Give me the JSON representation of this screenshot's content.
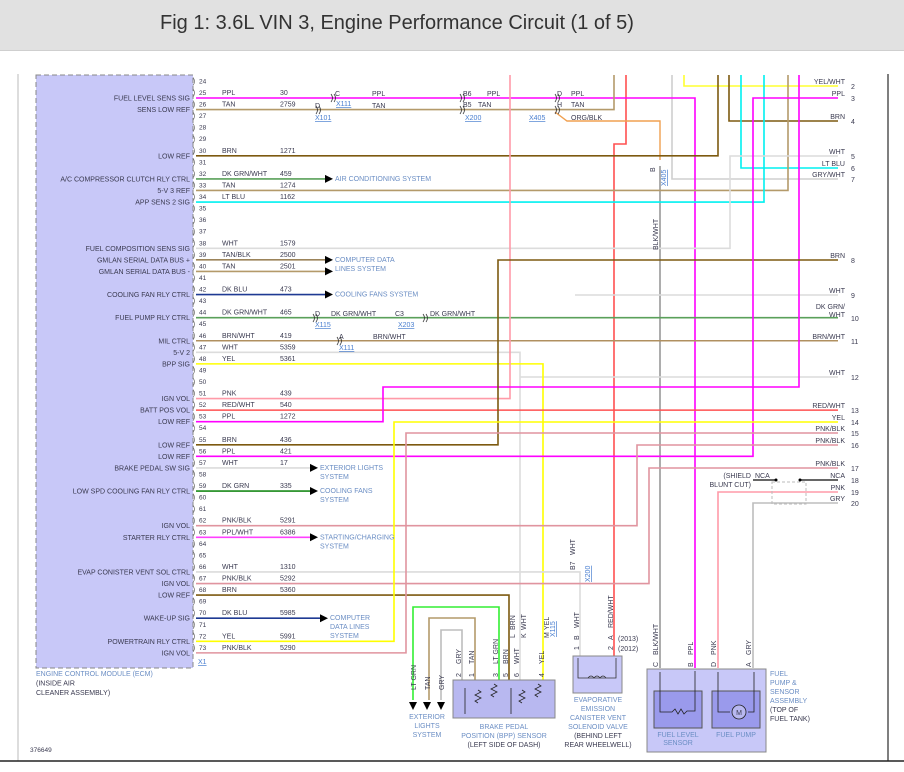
{
  "title": "Fig 1: 3.6L VIN 3, Engine Performance Circuit (1 of 5)",
  "figure_id": "376649",
  "wire_colors": {
    "PPL": "#ff00ff",
    "TAN": "#b49a6a",
    "BRN": "#7d5a10",
    "DK GRN/WHT": "#5aa05a",
    "LT BLU": "#00f0f0",
    "WHT": "#dcdcdc",
    "TAN/BLK": "#9c845a",
    "DK BLU": "#1f3a93",
    "BRN/WHT": "#b09060",
    "YEL": "#ffff00",
    "PNK": "#ff9aa8",
    "RED/WHT": "#ff5050",
    "PNK/BLK": "#e0949f",
    "DK GRN": "#1a8a1a",
    "PPL/WHT": "#ff40ff",
    "YEL/WHT": "#ffff30",
    "GRY/WHT": "#cfcfcf",
    "ORG/BLK": "#f0a050",
    "BLK/WHT": "#8a8a8a",
    "LT GRN": "#33ee33",
    "GRY": "#bdbdbd",
    "NCA": "#333333"
  },
  "ecm": {
    "name_lines": [
      "ENGINE CONTROL MODULE (ECM)",
      "(INSIDE AIR",
      "CLEANER ASSEMBLY)"
    ],
    "connector": "X1",
    "fill": "#c8c8f8",
    "pins": [
      {
        "n": "24"
      },
      {
        "n": "25",
        "fn": "FUEL LEVEL SENS SIG",
        "color": "PPL",
        "circuit": "30"
      },
      {
        "n": "26",
        "fn": "SENS LOW REF",
        "color": "TAN",
        "circuit": "2759"
      },
      {
        "n": "27"
      },
      {
        "n": "28"
      },
      {
        "n": "29"
      },
      {
        "n": "30",
        "fn": "LOW REF",
        "color": "BRN",
        "circuit": "1271"
      },
      {
        "n": "31"
      },
      {
        "n": "32",
        "fn": "A/C COMPRESSOR CLUTCH RLY CTRL",
        "color": "DK GRN/WHT",
        "circuit": "459"
      },
      {
        "n": "33",
        "fn": "5-V 3 REF",
        "color": "TAN",
        "circuit": "1274"
      },
      {
        "n": "34",
        "fn": "APP SENS 2 SIG",
        "color": "LT BLU",
        "circuit": "1162"
      },
      {
        "n": "35"
      },
      {
        "n": "36"
      },
      {
        "n": "37"
      },
      {
        "n": "38",
        "fn": "FUEL COMPOSITION SENS SIG",
        "color": "WHT",
        "circuit": "1579"
      },
      {
        "n": "39",
        "fn": "GMLAN SERIAL DATA BUS +",
        "color": "TAN/BLK",
        "circuit": "2500"
      },
      {
        "n": "40",
        "fn": "GMLAN SERIAL DATA BUS -",
        "color": "TAN",
        "circuit": "2501"
      },
      {
        "n": "41"
      },
      {
        "n": "42",
        "fn": "COOLING FAN RLY CTRL",
        "color": "DK BLU",
        "circuit": "473"
      },
      {
        "n": "43"
      },
      {
        "n": "44",
        "fn": "FUEL PUMP RLY CTRL",
        "color": "DK GRN/WHT",
        "circuit": "465"
      },
      {
        "n": "45"
      },
      {
        "n": "46",
        "fn": "MIL CTRL",
        "color": "BRN/WHT",
        "circuit": "419"
      },
      {
        "n": "47",
        "fn": "5-V 2",
        "color": "WHT",
        "circuit": "5359"
      },
      {
        "n": "48",
        "fn": "BPP SIG",
        "color": "YEL",
        "circuit": "5361"
      },
      {
        "n": "49"
      },
      {
        "n": "50"
      },
      {
        "n": "51",
        "fn": "IGN VOL",
        "color": "PNK",
        "circuit": "439"
      },
      {
        "n": "52",
        "fn": "BATT POS VOL",
        "color": "RED/WHT",
        "circuit": "540"
      },
      {
        "n": "53",
        "fn": "LOW REF",
        "color": "PPL",
        "circuit": "1272"
      },
      {
        "n": "54"
      },
      {
        "n": "55",
        "fn": "LOW REF",
        "color": "BRN",
        "circuit": "436"
      },
      {
        "n": "56",
        "fn": "LOW REF",
        "color": "PPL",
        "circuit": "421"
      },
      {
        "n": "57",
        "fn": "BRAKE PEDAL SW SIG",
        "color": "WHT",
        "circuit": "17"
      },
      {
        "n": "58"
      },
      {
        "n": "59",
        "fn": "LOW SPD COOLING FAN RLY CTRL",
        "color": "DK GRN",
        "circuit": "335"
      },
      {
        "n": "60"
      },
      {
        "n": "61"
      },
      {
        "n": "62",
        "fn": "IGN VOL",
        "color": "PNK/BLK",
        "circuit": "5291"
      },
      {
        "n": "63",
        "fn": "STARTER RLY CTRL",
        "color": "PPL/WHT",
        "circuit": "6386"
      },
      {
        "n": "64"
      },
      {
        "n": "65"
      },
      {
        "n": "66",
        "fn": "EVAP CONISTER VENT SOL CTRL",
        "color": "WHT",
        "circuit": "1310"
      },
      {
        "n": "67",
        "fn": "IGN VOL",
        "color": "PNK/BLK",
        "circuit": "5292"
      },
      {
        "n": "68",
        "fn": "LOW REF",
        "color": "BRN",
        "circuit": "5360"
      },
      {
        "n": "69"
      },
      {
        "n": "70",
        "fn": "WAKE-UP SIG",
        "color": "DK BLU",
        "circuit": "5985"
      },
      {
        "n": "71"
      },
      {
        "n": "72",
        "fn": "POWERTRAIN RLY CTRL",
        "color": "YEL",
        "circuit": "5991"
      },
      {
        "n": "73",
        "fn": "IGN VOL",
        "color": "PNK/BLK",
        "circuit": "5290"
      }
    ]
  },
  "destinations": [
    {
      "pins": [
        "32"
      ],
      "lines": [
        "AIR CONDITIONING SYSTEM"
      ]
    },
    {
      "pins": [
        "39",
        "40"
      ],
      "lines": [
        "COMPUTER DATA",
        "LINES SYSTEM"
      ]
    },
    {
      "pins": [
        "42"
      ],
      "lines": [
        "COOLING FANS SYSTEM"
      ]
    },
    {
      "pins": [
        "57"
      ],
      "lines": [
        "EXTERIOR LIGHTS",
        "SYSTEM"
      ]
    },
    {
      "pins": [
        "59"
      ],
      "lines": [
        "COOLING FANS",
        "SYSTEM"
      ]
    },
    {
      "pins": [
        "63"
      ],
      "lines": [
        "STARTING/CHARGING",
        "SYSTEM"
      ]
    },
    {
      "pins": [
        "70"
      ],
      "lines": [
        "COMPUTER",
        "DATA LINES",
        "SYSTEM"
      ]
    }
  ],
  "right_pins": [
    {
      "n": "2",
      "color": "YEL/WHT"
    },
    {
      "n": "3",
      "color": "PPL"
    },
    {
      "n": "4",
      "color": "BRN"
    },
    {
      "n": "5",
      "color": "WHT"
    },
    {
      "n": "6",
      "color": "LT BLU"
    },
    {
      "n": "7",
      "color": "GRY/WHT"
    },
    {
      "n": "8",
      "color": "BRN"
    },
    {
      "n": "9",
      "color": "WHT"
    },
    {
      "n": "10",
      "color": "DK GRN/ WHT"
    },
    {
      "n": "11",
      "color": "BRN/WHT"
    },
    {
      "n": "12",
      "color": "WHT"
    },
    {
      "n": "13",
      "color": "RED/WHT"
    },
    {
      "n": "14",
      "color": "YEL"
    },
    {
      "n": "15",
      "color": "PNK/BLK"
    },
    {
      "n": "16",
      "color": "PNK/BLK"
    },
    {
      "n": "17",
      "color": "PNK/BLK"
    },
    {
      "n": "18",
      "color": "NCA"
    },
    {
      "n": "19",
      "color": "PNK"
    },
    {
      "n": "20",
      "color": "GRY"
    }
  ],
  "shield_note": [
    "(SHIELD",
    "BLUNT CUT)"
  ],
  "shield_wire_label": "NCA",
  "inline_labels": [
    {
      "text": "C"
    },
    {
      "text": "X111",
      "link": true
    },
    {
      "text": "PPL"
    },
    {
      "text": "D"
    },
    {
      "text": "X101",
      "link": true
    },
    {
      "text": "TAN"
    },
    {
      "text": "B6"
    },
    {
      "text": "PPL"
    },
    {
      "text": "B5"
    },
    {
      "text": "TAN"
    },
    {
      "text": "X200",
      "link": true
    },
    {
      "text": "D"
    },
    {
      "text": "PPL"
    },
    {
      "text": "H"
    },
    {
      "text": "TAN"
    },
    {
      "text": "X405",
      "link": true
    },
    {
      "text": "ORG/BLK"
    },
    {
      "text": "D"
    },
    {
      "text": "X115",
      "link": true
    },
    {
      "text": "DK GRN/WHT"
    },
    {
      "text": "C3"
    },
    {
      "text": "X203",
      "link": true
    },
    {
      "text": "DK GRN/WHT"
    },
    {
      "text": "A"
    },
    {
      "text": "X111",
      "link": true
    },
    {
      "text": "BRN/WHT"
    },
    {
      "text": "B"
    },
    {
      "text": "X405",
      "link": true
    },
    {
      "text": "BLK/WHT"
    },
    {
      "text": "B7"
    },
    {
      "text": "WHT"
    },
    {
      "text": "X200",
      "link": true
    }
  ],
  "exterior_lights": {
    "wires": [
      "LT GRN",
      "TAN",
      "GRY"
    ],
    "lines": [
      "EXTERIOR",
      "LIGHTS",
      "SYSTEM"
    ]
  },
  "bpp_sensor": {
    "lines": [
      "BRAKE PEDAL",
      "POSITION (BPP) SENSOR",
      "(LEFT SIDE OF DASH)"
    ],
    "pins": [
      {
        "n": "2",
        "color": "GRY"
      },
      {
        "n": "1",
        "color": "TAN"
      },
      {
        "n": "3",
        "color": "LT GRN"
      },
      {
        "n": "5",
        "color": "BRN"
      },
      {
        "n": "6",
        "color": "WHT"
      },
      {
        "n": "4",
        "color": "YEL"
      }
    ],
    "x115_pins": [
      {
        "n": "L",
        "color": "BRN"
      },
      {
        "n": "K",
        "color": "WHT"
      },
      {
        "n": "M",
        "color": "YEL"
      }
    ],
    "connector": "X115"
  },
  "evap_valve": {
    "lines": [
      "EVAPORATIVE",
      "EMISSION",
      "CANISTER VENT",
      "SOLENOID VALVE",
      "(BEHIND LEFT",
      "REAR WHEELWELL)"
    ],
    "pins": [
      {
        "n": "1",
        "cav": "B",
        "color": "WHT"
      },
      {
        "n": "2",
        "cav": "A",
        "color": "RED/WHT"
      }
    ],
    "years": [
      "(2013)",
      "(2012)"
    ]
  },
  "fuel_pump_assembly": {
    "lines": [
      "FUEL",
      "PUMP &",
      "SENSOR",
      "ASSEMBLY",
      "(TOP OF",
      "FUEL TANK)"
    ],
    "pins": [
      {
        "n": "C",
        "color": "BLK/WHT"
      },
      {
        "n": "B",
        "color": "PPL"
      },
      {
        "n": "D",
        "color": "PNK"
      },
      {
        "n": "A",
        "color": "GRY"
      }
    ],
    "fuel_level_sensor": [
      "FUEL LEVEL",
      "SENSOR"
    ],
    "fuel_pump": "FUEL PUMP",
    "motor_symbol": "M"
  }
}
